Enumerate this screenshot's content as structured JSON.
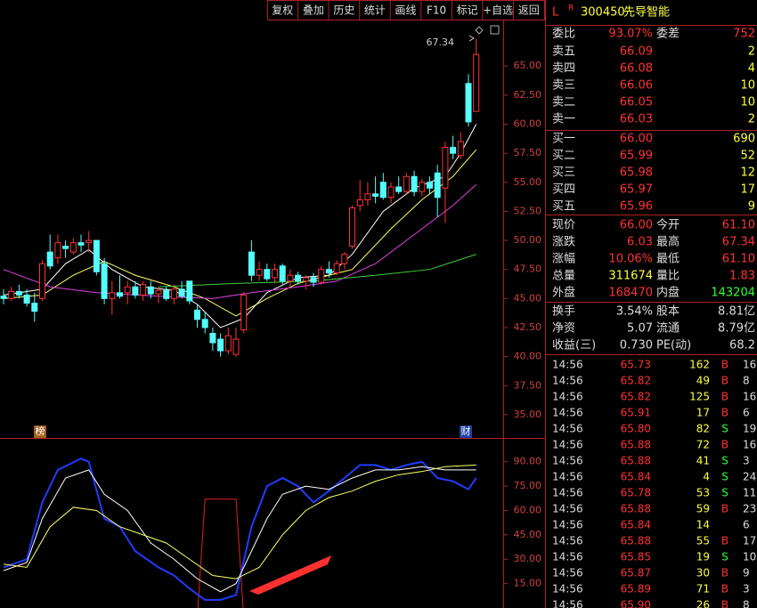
{
  "toolbar": [
    "复权",
    "叠加",
    "历史",
    "统计",
    "画线",
    "F10",
    "标记",
    "+自选",
    "返回"
  ],
  "header": {
    "market": "L",
    "flag": "R",
    "code": "300450",
    "name": "先导智能"
  },
  "price_chart": {
    "ylim": [
      33,
      69
    ],
    "yticks": [
      {
        "value": 35,
        "label": "35.00"
      },
      {
        "value": 37.5,
        "label": "37.50"
      },
      {
        "value": 40,
        "label": "40.00"
      },
      {
        "value": 42.5,
        "label": "42.50"
      },
      {
        "value": 45,
        "label": "45.00"
      },
      {
        "value": 47.5,
        "label": "47.50"
      },
      {
        "value": 50,
        "label": "50.00"
      },
      {
        "value": 52.5,
        "label": "52.50"
      },
      {
        "value": 55,
        "label": "55.00"
      },
      {
        "value": 57.5,
        "label": "57.50"
      },
      {
        "value": 60,
        "label": "60.00"
      },
      {
        "value": 62.5,
        "label": "62.50"
      },
      {
        "value": 65,
        "label": "65.00"
      }
    ],
    "up_color": "#ff3232",
    "down_color": "#54ffff",
    "candles": [
      [
        45.2,
        45.8,
        44.5,
        45.0
      ],
      [
        45.0,
        46.0,
        44.8,
        45.6
      ],
      [
        45.6,
        46.2,
        45.0,
        45.3
      ],
      [
        45.3,
        45.8,
        44.3,
        44.6
      ],
      [
        44.6,
        45.5,
        43.0,
        43.9
      ],
      [
        45.0,
        48.3,
        44.8,
        48.0
      ],
      [
        49.0,
        50.5,
        47.5,
        47.8
      ],
      [
        48.5,
        50.5,
        48.0,
        49.8
      ],
      [
        49.5,
        50.0,
        48.5,
        49.3
      ],
      [
        49.0,
        50.2,
        48.8,
        49.8
      ],
      [
        49.8,
        50.5,
        49.0,
        49.6
      ],
      [
        49.8,
        50.8,
        49.0,
        50.0
      ],
      [
        50.0,
        50.0,
        47.0,
        47.3
      ],
      [
        48.0,
        48.5,
        44.5,
        45.0
      ],
      [
        45.0,
        46.5,
        43.6,
        45.5
      ],
      [
        45.5,
        47.0,
        45.0,
        45.2
      ],
      [
        45.5,
        46.5,
        44.5,
        46.0
      ],
      [
        46.0,
        46.5,
        45.0,
        45.3
      ],
      [
        45.3,
        46.5,
        44.8,
        46.2
      ],
      [
        46.0,
        46.5,
        45.0,
        45.4
      ],
      [
        45.4,
        46.0,
        44.6,
        45.7
      ],
      [
        45.7,
        46.0,
        44.8,
        45.0
      ],
      [
        45.0,
        46.2,
        44.5,
        45.8
      ],
      [
        45.8,
        46.5,
        45.0,
        45.2
      ],
      [
        46.5,
        46.5,
        44.5,
        44.8
      ],
      [
        44.0,
        44.5,
        42.5,
        43.2
      ],
      [
        43.2,
        43.8,
        42.0,
        42.5
      ],
      [
        42.0,
        42.5,
        40.5,
        41.2
      ],
      [
        41.5,
        42.0,
        40.0,
        40.5
      ],
      [
        40.5,
        42.5,
        40.2,
        41.8
      ],
      [
        40.2,
        42.5,
        40.0,
        41.5
      ],
      [
        42.3,
        45.6,
        42.0,
        45.3
      ],
      [
        49.0,
        50.0,
        46.5,
        47.0
      ],
      [
        47.0,
        48.2,
        46.5,
        47.5
      ],
      [
        47.5,
        48.0,
        46.5,
        46.7
      ],
      [
        46.8,
        48.0,
        46.3,
        47.5
      ],
      [
        47.8,
        48.0,
        46.2,
        46.5
      ],
      [
        46.5,
        47.5,
        46.0,
        47.0
      ],
      [
        47.0,
        47.3,
        46.2,
        46.5
      ],
      [
        46.5,
        47.0,
        45.8,
        46.8
      ],
      [
        46.8,
        47.2,
        46.0,
        46.4
      ],
      [
        46.4,
        47.8,
        46.2,
        47.5
      ],
      [
        47.5,
        48.2,
        46.8,
        47.2
      ],
      [
        47.2,
        48.3,
        47.0,
        48.0
      ],
      [
        48.0,
        49.0,
        47.5,
        48.8
      ],
      [
        49.5,
        53.0,
        49.3,
        52.8
      ],
      [
        53.0,
        55.2,
        52.5,
        53.5
      ],
      [
        53.5,
        55.0,
        53.0,
        54.0
      ],
      [
        54.0,
        55.5,
        53.2,
        53.8
      ],
      [
        55.0,
        55.8,
        53.5,
        53.7
      ],
      [
        53.7,
        55.0,
        53.2,
        54.6
      ],
      [
        54.6,
        55.5,
        54.0,
        54.2
      ],
      [
        54.2,
        55.8,
        54.0,
        55.5
      ],
      [
        55.5,
        56.0,
        53.8,
        54.2
      ],
      [
        54.2,
        55.3,
        53.8,
        55.0
      ],
      [
        55.0,
        55.5,
        54.0,
        54.5
      ],
      [
        55.8,
        56.5,
        52.0,
        53.7
      ],
      [
        54.5,
        58.5,
        51.5,
        58.0
      ],
      [
        58.0,
        59.0,
        57.0,
        57.5
      ],
      [
        57.3,
        59.3,
        57.0,
        58.5
      ],
      [
        63.5,
        64.3,
        59.8,
        60.2
      ],
      [
        61.1,
        67.34,
        61.1,
        66.0
      ]
    ],
    "ma": [
      {
        "color": "#ffffff",
        "points": [
          [
            0,
            45.3
          ],
          [
            5,
            45.8
          ],
          [
            8,
            48
          ],
          [
            11,
            49.2
          ],
          [
            14,
            47.5
          ],
          [
            18,
            46
          ],
          [
            22,
            45.7
          ],
          [
            25,
            44.5
          ],
          [
            28,
            42.5
          ],
          [
            31,
            43.3
          ],
          [
            34,
            45.5
          ],
          [
            38,
            46.8
          ],
          [
            42,
            47
          ],
          [
            45,
            48.8
          ],
          [
            49,
            52.5
          ],
          [
            53,
            54.5
          ],
          [
            57,
            55.5
          ],
          [
            59,
            57.5
          ],
          [
            61,
            60
          ]
        ]
      },
      {
        "color": "#ffff66",
        "points": [
          [
            0,
            45
          ],
          [
            5,
            45.3
          ],
          [
            9,
            47
          ],
          [
            13,
            48.2
          ],
          [
            17,
            47
          ],
          [
            22,
            46
          ],
          [
            26,
            45
          ],
          [
            30,
            43.5
          ],
          [
            34,
            45
          ],
          [
            38,
            46.3
          ],
          [
            42,
            47
          ],
          [
            45,
            47.5
          ],
          [
            50,
            51
          ],
          [
            54,
            53.5
          ],
          [
            58,
            55.5
          ],
          [
            61,
            57.8
          ]
        ]
      },
      {
        "color": "#e040e0",
        "points": [
          [
            0,
            47.5
          ],
          [
            6,
            46
          ],
          [
            12,
            45.5
          ],
          [
            20,
            45.2
          ],
          [
            27,
            45
          ],
          [
            32,
            45.5
          ],
          [
            38,
            46
          ],
          [
            43,
            46.5
          ],
          [
            48,
            48
          ],
          [
            53,
            50.5
          ],
          [
            58,
            53
          ],
          [
            61,
            54.8
          ]
        ]
      },
      {
        "color": "#40d040",
        "points": [
          [
            20,
            46
          ],
          [
            30,
            46.3
          ],
          [
            40,
            46.5
          ],
          [
            48,
            47
          ],
          [
            55,
            47.5
          ],
          [
            61,
            48.8
          ]
        ]
      }
    ],
    "high_label": "67.34",
    "markers": [
      "榜",
      "财"
    ]
  },
  "indicator": {
    "ylim": [
      0,
      103
    ],
    "yticks": [
      {
        "value": 15,
        "label": "15.00"
      },
      {
        "value": 30,
        "label": "30.00"
      },
      {
        "value": 45,
        "label": "45.00"
      },
      {
        "value": 60,
        "label": "60.00"
      },
      {
        "value": 75,
        "label": "75.00"
      },
      {
        "value": 90,
        "label": "90.00"
      }
    ],
    "lines": [
      {
        "color": "#1e3cff",
        "points": [
          [
            0,
            25
          ],
          [
            3,
            30
          ],
          [
            5,
            65
          ],
          [
            7,
            85
          ],
          [
            10,
            92
          ],
          [
            11,
            90
          ],
          [
            13,
            55
          ],
          [
            15,
            50
          ],
          [
            17,
            35
          ],
          [
            20,
            25
          ],
          [
            22,
            20
          ],
          [
            24,
            12
          ],
          [
            26,
            5
          ],
          [
            28,
            5
          ],
          [
            30,
            8
          ],
          [
            32,
            50
          ],
          [
            34,
            75
          ],
          [
            36,
            80
          ],
          [
            38,
            75
          ],
          [
            40,
            65
          ],
          [
            42,
            72
          ],
          [
            44,
            80
          ],
          [
            46,
            88
          ],
          [
            48,
            88
          ],
          [
            50,
            85
          ],
          [
            52,
            88
          ],
          [
            54,
            90
          ],
          [
            56,
            80
          ],
          [
            58,
            78
          ],
          [
            60,
            73
          ],
          [
            61,
            80
          ]
        ]
      },
      {
        "color": "#ffffff",
        "points": [
          [
            0,
            23
          ],
          [
            3,
            28
          ],
          [
            5,
            55
          ],
          [
            8,
            80
          ],
          [
            11,
            85
          ],
          [
            13,
            70
          ],
          [
            16,
            60
          ],
          [
            19,
            40
          ],
          [
            22,
            30
          ],
          [
            25,
            18
          ],
          [
            28,
            10
          ],
          [
            30,
            15
          ],
          [
            32,
            35
          ],
          [
            34,
            55
          ],
          [
            36,
            70
          ],
          [
            39,
            75
          ],
          [
            42,
            73
          ],
          [
            45,
            80
          ],
          [
            48,
            85
          ],
          [
            51,
            85
          ],
          [
            54,
            87
          ],
          [
            57,
            85
          ],
          [
            61,
            85
          ]
        ]
      },
      {
        "color": "#ffff66",
        "points": [
          [
            0,
            27
          ],
          [
            3,
            25
          ],
          [
            6,
            50
          ],
          [
            9,
            62
          ],
          [
            12,
            60
          ],
          [
            15,
            50
          ],
          [
            18,
            45
          ],
          [
            21,
            40
          ],
          [
            24,
            30
          ],
          [
            27,
            20
          ],
          [
            30,
            18
          ],
          [
            33,
            25
          ],
          [
            36,
            45
          ],
          [
            39,
            60
          ],
          [
            42,
            68
          ],
          [
            45,
            72
          ],
          [
            48,
            78
          ],
          [
            51,
            82
          ],
          [
            54,
            84
          ],
          [
            57,
            87
          ],
          [
            61,
            88
          ]
        ]
      }
    ],
    "signal": {
      "from": 26,
      "to": 30,
      "value": 67
    }
  },
  "quote": {
    "ratio": [
      [
        "委比",
        "93.07%",
        "委差",
        "752"
      ]
    ],
    "asks": [
      [
        "卖五",
        "66.09",
        "2"
      ],
      [
        "卖四",
        "66.08",
        "4"
      ],
      [
        "卖三",
        "66.06",
        "10"
      ],
      [
        "卖二",
        "66.05",
        "10"
      ],
      [
        "卖一",
        "66.03",
        "2"
      ]
    ],
    "bids": [
      [
        "买一",
        "66.00",
        "690"
      ],
      [
        "买二",
        "65.99",
        "52"
      ],
      [
        "买三",
        "65.98",
        "12"
      ],
      [
        "买四",
        "65.97",
        "17"
      ],
      [
        "买五",
        "65.96",
        "9"
      ]
    ],
    "stats": [
      [
        "现价",
        "66.00",
        "今开",
        "61.10"
      ],
      [
        "涨跌",
        "6.03",
        "最高",
        "67.34"
      ],
      [
        "涨幅",
        "10.06%",
        "最低",
        "61.10"
      ],
      [
        "总量",
        "311674",
        "量比",
        "1.83"
      ],
      [
        "外盘",
        "168470",
        "内盘",
        "143204"
      ]
    ],
    "extra": [
      [
        "换手",
        "3.54%",
        "股本",
        "8.81亿"
      ],
      [
        "净资",
        "5.07",
        "流通",
        "8.79亿"
      ],
      [
        "收益(三)",
        "0.730",
        "PE(动)",
        "68.2"
      ]
    ]
  },
  "ticks": [
    [
      "14:56",
      "65.73",
      "162",
      "B",
      "16"
    ],
    [
      "14:56",
      "65.82",
      "49",
      "B",
      "8"
    ],
    [
      "14:56",
      "65.82",
      "125",
      "B",
      "16"
    ],
    [
      "14:56",
      "65.91",
      "17",
      "B",
      "6"
    ],
    [
      "14:56",
      "65.80",
      "82",
      "S",
      "19"
    ],
    [
      "14:56",
      "65.88",
      "72",
      "B",
      "16"
    ],
    [
      "14:56",
      "65.88",
      "41",
      "S",
      "3"
    ],
    [
      "14:56",
      "65.84",
      "4",
      "S",
      "24"
    ],
    [
      "14:56",
      "65.78",
      "53",
      "S",
      "11"
    ],
    [
      "14:56",
      "65.88",
      "59",
      "B",
      "23"
    ],
    [
      "14:56",
      "65.84",
      "14",
      null,
      "6"
    ],
    [
      "14:56",
      "65.88",
      "55",
      "B",
      "17"
    ],
    [
      "14:56",
      "65.85",
      "19",
      "S",
      "10"
    ],
    [
      "14:56",
      "65.87",
      "30",
      "B",
      "9"
    ],
    [
      "14:56",
      "65.89",
      "71",
      "B",
      "3"
    ],
    [
      "14:56",
      "65.90",
      "26",
      "B",
      "8"
    ]
  ]
}
